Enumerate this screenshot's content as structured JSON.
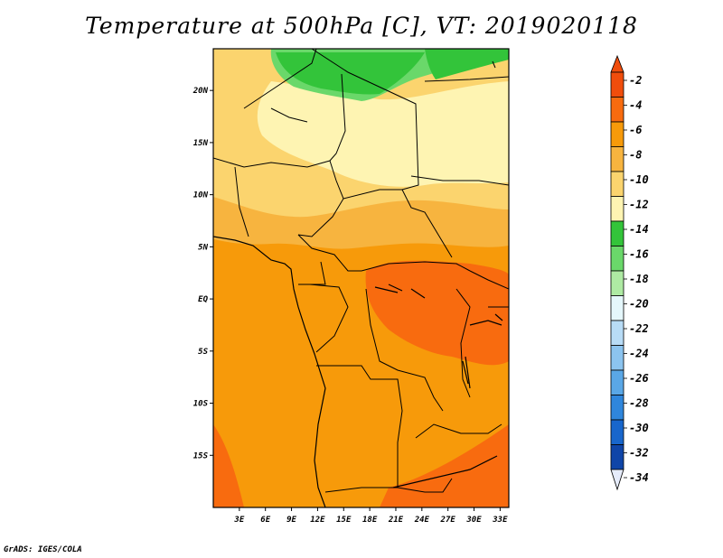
{
  "title": "Temperature at 500hPa [C], VT: 2019020118",
  "credit": "GrADS: IGES/COLA",
  "colors": {
    "cn_m2": "#f04d0c",
    "cn_m4": "#f86b0f",
    "cn_m6": "#f79a0a",
    "cn_m8": "#f7b43f",
    "cn_m10": "#fbd46e",
    "cn_m12": "#fef4b2",
    "cn_m14": "#33c43a",
    "cn_m16": "#6ad86a",
    "cn_m18": "#aeeaa3",
    "cn_m20": "#e5f7fb",
    "cn_m22": "#b8dcf6",
    "cn_m24": "#8cc4ef",
    "cn_m26": "#5aa7e6",
    "cn_m28": "#2f86dc",
    "cn_m30": "#1866cc",
    "cn_m32": "#0f45a8",
    "cn_m34": "#0c2077",
    "border": "#000000"
  },
  "chart_data": {
    "type": "heatmap",
    "title": "Temperature at 500hPa [C], VT: 2019020118",
    "variable": "Temperature at 500hPa",
    "units": "C",
    "valid_time": "2019020118",
    "xlim": [
      0,
      34
    ],
    "ylim": [
      -20,
      24
    ],
    "x_ticks": [
      3,
      6,
      9,
      12,
      15,
      18,
      21,
      24,
      27,
      30,
      33
    ],
    "x_tick_labels": [
      "3E",
      "6E",
      "9E",
      "12E",
      "15E",
      "18E",
      "21E",
      "24E",
      "27E",
      "30E",
      "33E"
    ],
    "y_ticks": [
      20,
      15,
      10,
      5,
      0,
      -5,
      -10,
      -15
    ],
    "y_tick_labels": [
      "20N",
      "15N",
      "10N",
      "5N",
      "EQ",
      "5S",
      "10S",
      "15S"
    ],
    "colorbar": {
      "levels": [
        -2,
        -4,
        -6,
        -8,
        -10,
        -12,
        -14,
        -16,
        -18,
        -20,
        -22,
        -24,
        -26,
        -28,
        -30,
        -32,
        -34
      ],
      "labels": [
        "-2",
        "-4",
        "-6",
        "-8",
        "-10",
        "-12",
        "-14",
        "-16",
        "-18",
        "-20",
        "-22",
        "-24",
        "-26",
        "-28",
        "-30",
        "-32",
        "-34"
      ]
    },
    "regions": [
      {
        "name": "far-north-green",
        "approx_value_c": -15,
        "lon": [
          5,
          34
        ],
        "lat": [
          20,
          24
        ]
      },
      {
        "name": "sahara-pale",
        "approx_value_c": -11,
        "lon": [
          6,
          34
        ],
        "lat": [
          12,
          21
        ]
      },
      {
        "name": "sahel-yellow",
        "approx_value_c": -9,
        "lon": [
          0,
          34
        ],
        "lat": [
          8,
          14
        ]
      },
      {
        "name": "gulf-guinea-light-orange",
        "approx_value_c": -7,
        "lon": [
          4,
          34
        ],
        "lat": [
          4,
          9
        ]
      },
      {
        "name": "congo-orange",
        "approx_value_c": -5,
        "lon": [
          0,
          34
        ],
        "lat": [
          -20,
          4
        ]
      },
      {
        "name": "great-lakes-warm",
        "approx_value_c": -3,
        "lon": [
          18,
          34
        ],
        "lat": [
          -5,
          4
        ]
      }
    ]
  }
}
